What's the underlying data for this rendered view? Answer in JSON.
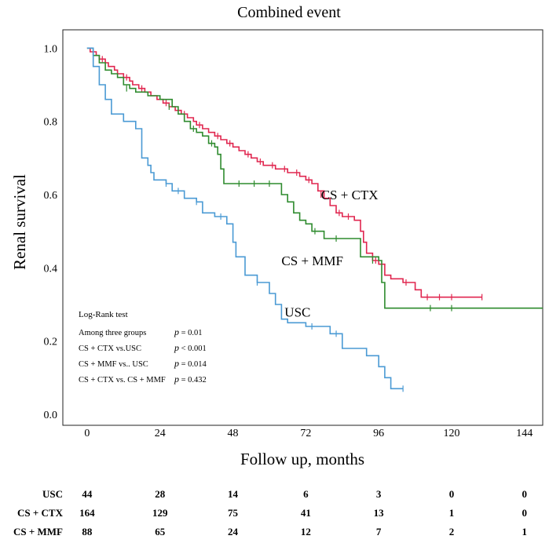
{
  "chart_data": {
    "type": "line",
    "subtype": "kaplan-meier",
    "title": "Combined event",
    "xlabel": "Follow up, months",
    "ylabel": "Renal survival",
    "xlim": [
      -8,
      150
    ],
    "ylim": [
      -0.03,
      1.05
    ],
    "xticks": [
      0,
      24,
      48,
      72,
      96,
      120,
      144
    ],
    "yticks": [
      0.0,
      0.2,
      0.4,
      0.6,
      0.8,
      1.0
    ],
    "yticklabels": [
      "0.0",
      "0.2",
      "0.4",
      "0.6",
      "0.8",
      "1.0"
    ],
    "grid": false,
    "series": [
      {
        "name": "CS + CTX",
        "color": "#e0264f",
        "points": [
          [
            0,
            1.0
          ],
          [
            1,
            0.99
          ],
          [
            3,
            0.98
          ],
          [
            4,
            0.97
          ],
          [
            6,
            0.96
          ],
          [
            7,
            0.95
          ],
          [
            9,
            0.94
          ],
          [
            10,
            0.93
          ],
          [
            12,
            0.92
          ],
          [
            14,
            0.91
          ],
          [
            15,
            0.9
          ],
          [
            17,
            0.89
          ],
          [
            19,
            0.88
          ],
          [
            21,
            0.87
          ],
          [
            23,
            0.86
          ],
          [
            25,
            0.85
          ],
          [
            27,
            0.84
          ],
          [
            29,
            0.83
          ],
          [
            31,
            0.82
          ],
          [
            33,
            0.81
          ],
          [
            35,
            0.8
          ],
          [
            36,
            0.79
          ],
          [
            38,
            0.78
          ],
          [
            40,
            0.77
          ],
          [
            42,
            0.76
          ],
          [
            44,
            0.75
          ],
          [
            46,
            0.74
          ],
          [
            48,
            0.73
          ],
          [
            50,
            0.72
          ],
          [
            52,
            0.71
          ],
          [
            54,
            0.7
          ],
          [
            56,
            0.69
          ],
          [
            58,
            0.68
          ],
          [
            60,
            0.68
          ],
          [
            62,
            0.67
          ],
          [
            64,
            0.67
          ],
          [
            66,
            0.66
          ],
          [
            68,
            0.66
          ],
          [
            70,
            0.65
          ],
          [
            72,
            0.64
          ],
          [
            74,
            0.63
          ],
          [
            76,
            0.61
          ],
          [
            78,
            0.59
          ],
          [
            80,
            0.57
          ],
          [
            82,
            0.55
          ],
          [
            84,
            0.54
          ],
          [
            86,
            0.54
          ],
          [
            88,
            0.53
          ],
          [
            90,
            0.5
          ],
          [
            91,
            0.47
          ],
          [
            92,
            0.44
          ],
          [
            94,
            0.42
          ],
          [
            96,
            0.41
          ],
          [
            98,
            0.38
          ],
          [
            100,
            0.37
          ],
          [
            104,
            0.36
          ],
          [
            108,
            0.34
          ],
          [
            110,
            0.32
          ],
          [
            130,
            0.32
          ]
        ],
        "censored": [
          [
            5,
            0.97
          ],
          [
            13,
            0.92
          ],
          [
            18,
            0.89
          ],
          [
            26,
            0.85
          ],
          [
            32,
            0.82
          ],
          [
            37,
            0.79
          ],
          [
            43,
            0.76
          ],
          [
            47,
            0.74
          ],
          [
            53,
            0.71
          ],
          [
            57,
            0.69
          ],
          [
            61,
            0.68
          ],
          [
            65,
            0.67
          ],
          [
            69,
            0.66
          ],
          [
            73,
            0.64
          ],
          [
            77,
            0.6
          ],
          [
            83,
            0.55
          ],
          [
            86,
            0.54
          ],
          [
            95,
            0.42
          ],
          [
            105,
            0.36
          ],
          [
            112,
            0.32
          ],
          [
            116,
            0.32
          ],
          [
            120,
            0.32
          ],
          [
            130,
            0.32
          ]
        ]
      },
      {
        "name": "CS + MMF",
        "color": "#2e8b2e",
        "points": [
          [
            0,
            1.0
          ],
          [
            2,
            0.98
          ],
          [
            4,
            0.96
          ],
          [
            6,
            0.94
          ],
          [
            8,
            0.93
          ],
          [
            10,
            0.92
          ],
          [
            12,
            0.9
          ],
          [
            14,
            0.89
          ],
          [
            16,
            0.88
          ],
          [
            20,
            0.87
          ],
          [
            24,
            0.86
          ],
          [
            28,
            0.84
          ],
          [
            30,
            0.82
          ],
          [
            32,
            0.8
          ],
          [
            34,
            0.78
          ],
          [
            36,
            0.77
          ],
          [
            38,
            0.76
          ],
          [
            40,
            0.74
          ],
          [
            42,
            0.73
          ],
          [
            43,
            0.71
          ],
          [
            44,
            0.67
          ],
          [
            45,
            0.63
          ],
          [
            52,
            0.63
          ],
          [
            58,
            0.63
          ],
          [
            62,
            0.63
          ],
          [
            64,
            0.6
          ],
          [
            66,
            0.58
          ],
          [
            68,
            0.55
          ],
          [
            70,
            0.53
          ],
          [
            72,
            0.52
          ],
          [
            74,
            0.5
          ],
          [
            76,
            0.5
          ],
          [
            78,
            0.48
          ],
          [
            88,
            0.48
          ],
          [
            90,
            0.43
          ],
          [
            92,
            0.43
          ],
          [
            96,
            0.42
          ],
          [
            97,
            0.36
          ],
          [
            98,
            0.29
          ],
          [
            150,
            0.29
          ]
        ],
        "censored": [
          [
            13,
            0.89
          ],
          [
            27,
            0.84
          ],
          [
            35,
            0.78
          ],
          [
            41,
            0.74
          ],
          [
            50,
            0.63
          ],
          [
            55,
            0.63
          ],
          [
            60,
            0.63
          ],
          [
            75,
            0.5
          ],
          [
            82,
            0.48
          ],
          [
            94,
            0.42
          ],
          [
            113,
            0.29
          ],
          [
            120,
            0.29
          ]
        ]
      },
      {
        "name": "USC",
        "color": "#4a9ad4",
        "points": [
          [
            0,
            1.0
          ],
          [
            2,
            0.95
          ],
          [
            4,
            0.9
          ],
          [
            6,
            0.86
          ],
          [
            8,
            0.82
          ],
          [
            12,
            0.8
          ],
          [
            16,
            0.78
          ],
          [
            18,
            0.7
          ],
          [
            20,
            0.68
          ],
          [
            21,
            0.66
          ],
          [
            22,
            0.64
          ],
          [
            26,
            0.63
          ],
          [
            28,
            0.61
          ],
          [
            32,
            0.59
          ],
          [
            36,
            0.58
          ],
          [
            38,
            0.55
          ],
          [
            42,
            0.54
          ],
          [
            46,
            0.52
          ],
          [
            48,
            0.47
          ],
          [
            49,
            0.43
          ],
          [
            52,
            0.38
          ],
          [
            56,
            0.36
          ],
          [
            60,
            0.33
          ],
          [
            62,
            0.3
          ],
          [
            64,
            0.26
          ],
          [
            66,
            0.25
          ],
          [
            72,
            0.24
          ],
          [
            80,
            0.22
          ],
          [
            84,
            0.18
          ],
          [
            92,
            0.16
          ],
          [
            96,
            0.13
          ],
          [
            98,
            0.1
          ],
          [
            100,
            0.07
          ],
          [
            104,
            0.07
          ]
        ],
        "censored": [
          [
            26,
            0.63
          ],
          [
            30,
            0.61
          ],
          [
            36,
            0.58
          ],
          [
            44,
            0.54
          ],
          [
            56,
            0.36
          ],
          [
            74,
            0.24
          ],
          [
            82,
            0.22
          ],
          [
            104,
            0.07
          ]
        ]
      }
    ],
    "curve_labels": [
      {
        "text": "CS + CTX",
        "x": 77,
        "y": 0.6
      },
      {
        "text": "CS + MMF",
        "x": 64,
        "y": 0.42
      },
      {
        "text": "USC",
        "x": 65,
        "y": 0.28
      }
    ],
    "annotation": {
      "heading": "Log-Rank test",
      "rows": [
        {
          "label": "Among three groups",
          "p_italic": "p",
          "p_rest": "= 0.01"
        },
        {
          "label": "CS + CTX vs.USC",
          "p_italic": "p",
          "p_rest": "< 0.001"
        },
        {
          "label": "CS + MMF vs.. USC",
          "p_italic": "p",
          "p_rest": "= 0.014"
        },
        {
          "label": "CS + CTX vs. CS + MMF",
          "p_italic": "p",
          "p_rest": "= 0.432"
        }
      ]
    }
  },
  "risk_table": {
    "timepoints": [
      0,
      24,
      48,
      72,
      96,
      120,
      144
    ],
    "rows": [
      {
        "name": "USC",
        "values": [
          "44",
          "28",
          "14",
          "6",
          "3",
          "0",
          "0"
        ]
      },
      {
        "name": "CS + CTX",
        "values": [
          "164",
          "129",
          "75",
          "41",
          "13",
          "1",
          "0"
        ]
      },
      {
        "name": "CS + MMF",
        "values": [
          "88",
          "65",
          "24",
          "12",
          "7",
          "2",
          "1"
        ]
      }
    ]
  }
}
